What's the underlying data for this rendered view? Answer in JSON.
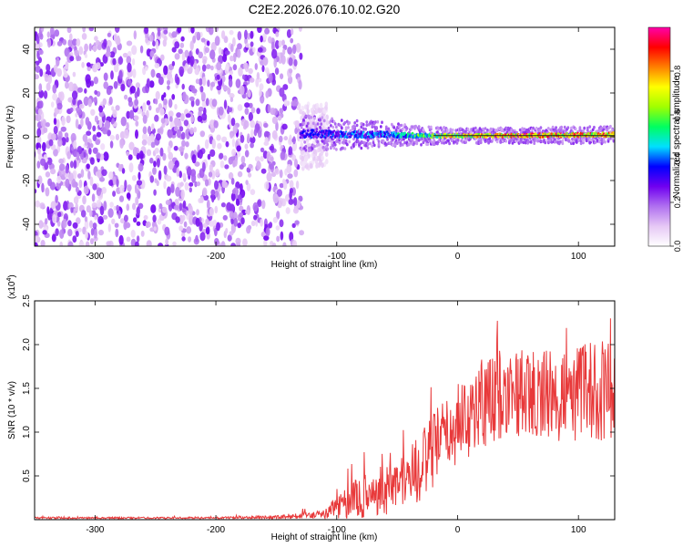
{
  "page_title": "C2E2.2026.076.10.02.G20",
  "chart_data": [
    {
      "type": "heatmap",
      "title": "C2E2.2026.076.10.02.G20",
      "xlabel": "Height of straight line (km)",
      "ylabel": "Frequency (Hz)",
      "xlim": [
        -350,
        130
      ],
      "ylim": [
        -50,
        50
      ],
      "x_ticks": [
        -300,
        -200,
        -100,
        0,
        100
      ],
      "y_ticks": [
        -40,
        -20,
        0,
        20,
        40
      ],
      "colorbar": {
        "label": "Normalized spectral amplitude",
        "range": [
          0.0,
          1.0
        ],
        "ticks": [
          0.0,
          0.2,
          0.4,
          0.6,
          0.8
        ],
        "tick_labels": [
          "0.0",
          "0.2",
          "0.4",
          "0.6",
          "0.8"
        ],
        "colormap": [
          "#ffffff",
          "#e6c8f5",
          "#b070f0",
          "#7000f0",
          "#0000ff",
          "#00e0ff",
          "#00ff60",
          "#a0ff00",
          "#ffff00",
          "#ff8000",
          "#ff0000",
          "#ff00aa"
        ]
      },
      "noise_region": {
        "x_range": [
          -350,
          -130
        ],
        "freq_range": [
          -50,
          50
        ],
        "amplitude": [
          0.0,
          0.15
        ]
      },
      "signal_line": [
        {
          "x": -130,
          "freq": 1.5,
          "spread": 6,
          "amplitude": 0.35
        },
        {
          "x": -100,
          "freq": 1.0,
          "spread": 5,
          "amplitude": 0.4
        },
        {
          "x": -60,
          "freq": 1.0,
          "spread": 4,
          "amplitude": 0.45
        },
        {
          "x": -30,
          "freq": 0.5,
          "spread": 3,
          "amplitude": 0.6
        },
        {
          "x": 0,
          "freq": 0.5,
          "spread": 2.5,
          "amplitude": 0.8
        },
        {
          "x": 50,
          "freq": 0.5,
          "spread": 2.5,
          "amplitude": 0.9
        },
        {
          "x": 130,
          "freq": 1.0,
          "spread": 3,
          "amplitude": 0.85
        }
      ]
    },
    {
      "type": "line",
      "xlabel": "Height of straight line (km)",
      "ylabel": "SNR (10 * v/v)",
      "multiplier_label": "(x10",
      "multiplier_exp": "4",
      "multiplier_close": ")",
      "xlim": [
        -350,
        130
      ],
      "ylim": [
        0,
        2.5
      ],
      "x_ticks": [
        -300,
        -200,
        -100,
        0,
        100
      ],
      "y_ticks": [
        0.5,
        1.0,
        1.5,
        2.0,
        2.5
      ],
      "y_tick_labels": [
        "0.5",
        "1.0",
        "1.5",
        "2.0",
        "2.5"
      ],
      "series": [
        {
          "name": "SNR",
          "color": "#e8393a",
          "envelope_x": [
            -350,
            -200,
            -150,
            -110,
            -100,
            -80,
            -60,
            -40,
            -30,
            -20,
            0,
            10,
            20,
            40,
            60,
            80,
            100,
            120,
            130
          ],
          "envelope_mean": [
            0.02,
            0.02,
            0.03,
            0.06,
            0.15,
            0.25,
            0.35,
            0.5,
            0.6,
            0.8,
            1.1,
            1.2,
            1.35,
            1.45,
            1.45,
            1.4,
            1.45,
            1.5,
            1.45
          ],
          "envelope_spread": [
            0.01,
            0.01,
            0.02,
            0.05,
            0.15,
            0.25,
            0.3,
            0.35,
            0.4,
            0.45,
            0.45,
            0.5,
            0.55,
            0.5,
            0.5,
            0.55,
            0.55,
            0.6,
            0.5
          ]
        }
      ]
    }
  ]
}
